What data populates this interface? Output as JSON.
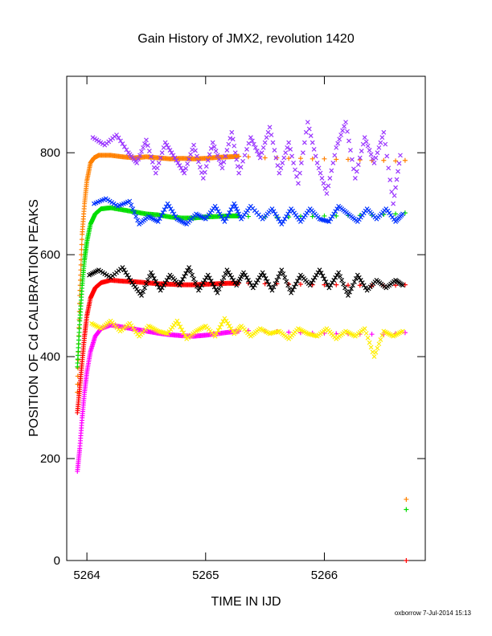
{
  "chart_data": {
    "type": "scatter",
    "title": "Gain History of JMX2, revolution 1420",
    "xlabel": "TIME IN IJD",
    "ylabel": "POSITION OF Cd CALIBRATION PEAKS",
    "xlim": [
      5263.83,
      5266.85
    ],
    "ylim": [
      0,
      950
    ],
    "x_ticks": [
      5264,
      5265,
      5266
    ],
    "y_ticks": [
      0,
      200,
      400,
      600,
      800
    ],
    "grid": false,
    "legend": "none",
    "footer": "oxborrow  7-Jul-2014 15:13",
    "series": [
      {
        "color": "#ff8000",
        "marker": "plus",
        "x": [
          5263.92,
          5263.94,
          5263.96,
          5263.98,
          5264.0,
          5264.03,
          5264.06,
          5264.1,
          5264.2,
          5264.3,
          5264.4,
          5264.5,
          5264.6,
          5264.7,
          5264.8,
          5264.9,
          5265.0,
          5265.1,
          5265.2,
          5265.28,
          5265.36,
          5265.5,
          5265.6,
          5265.7,
          5265.8,
          5265.9,
          5266.0,
          5266.1,
          5266.2,
          5266.3,
          5266.4,
          5266.5,
          5266.6,
          5266.68
        ],
        "y": [
          330,
          520,
          640,
          700,
          745,
          780,
          790,
          795,
          795,
          792,
          790,
          792,
          790,
          788,
          789,
          788,
          789,
          791,
          792,
          793,
          792,
          790,
          790,
          789,
          789,
          788,
          788,
          787,
          787,
          786,
          785,
          785,
          784,
          785
        ]
      },
      {
        "color": "#00dd00",
        "marker": "plus",
        "x": [
          5263.92,
          5263.94,
          5263.96,
          5263.98,
          5264.0,
          5264.03,
          5264.07,
          5264.12,
          5264.2,
          5264.3,
          5264.4,
          5264.5,
          5264.6,
          5264.7,
          5264.8,
          5264.9,
          5265.0,
          5265.1,
          5265.2,
          5265.28,
          5265.36,
          5265.5,
          5265.6,
          5265.7,
          5265.8,
          5265.9,
          5266.0,
          5266.1,
          5266.2,
          5266.3,
          5266.4,
          5266.5,
          5266.6,
          5266.68
        ],
        "y": [
          380,
          470,
          540,
          590,
          625,
          660,
          680,
          690,
          692,
          688,
          684,
          680,
          678,
          674,
          672,
          672,
          674,
          675,
          676,
          676,
          675,
          674,
          674,
          674,
          675,
          675,
          676,
          676,
          677,
          677,
          678,
          679,
          680,
          682
        ]
      },
      {
        "color": "#ff0000",
        "marker": "plus",
        "x": [
          5263.92,
          5263.94,
          5263.96,
          5263.98,
          5264.0,
          5264.03,
          5264.07,
          5264.12,
          5264.2,
          5264.3,
          5264.4,
          5264.5,
          5264.6,
          5264.7,
          5264.8,
          5264.9,
          5265.0,
          5265.1,
          5265.2,
          5265.28,
          5265.36,
          5265.5,
          5265.6,
          5265.7,
          5265.8,
          5265.9,
          5266.0,
          5266.1,
          5266.2,
          5266.3,
          5266.4,
          5266.5,
          5266.6,
          5266.68
        ],
        "y": [
          290,
          340,
          390,
          440,
          480,
          515,
          535,
          545,
          550,
          548,
          547,
          545,
          543,
          542,
          541,
          541,
          542,
          543,
          544,
          544,
          544,
          543,
          543,
          542,
          542,
          541,
          541,
          541,
          540,
          540,
          539,
          539,
          540,
          541
        ]
      },
      {
        "color": "#ff00ff",
        "marker": "plus",
        "x": [
          5263.92,
          5263.94,
          5263.96,
          5263.98,
          5264.0,
          5264.03,
          5264.07,
          5264.12,
          5264.2,
          5264.3,
          5264.4,
          5264.5,
          5264.6,
          5264.7,
          5264.8,
          5264.9,
          5265.0,
          5265.1,
          5265.2,
          5265.28,
          5265.36,
          5265.5,
          5265.6,
          5265.7,
          5265.8,
          5265.9,
          5266.0,
          5266.1,
          5266.2,
          5266.3,
          5266.4,
          5266.5,
          5266.6,
          5266.68
        ],
        "y": [
          175,
          220,
          280,
          330,
          370,
          410,
          440,
          455,
          462,
          458,
          454,
          450,
          446,
          443,
          441,
          440,
          442,
          445,
          448,
          450,
          451,
          450,
          449,
          448,
          447,
          446,
          446,
          445,
          445,
          444,
          444,
          444,
          445,
          447
        ]
      },
      {
        "color": "#9933ff",
        "marker": "x",
        "x": [
          5264.05,
          5264.15,
          5264.25,
          5264.35,
          5264.42,
          5264.5,
          5264.58,
          5264.66,
          5264.74,
          5264.82,
          5264.9,
          5264.98,
          5265.06,
          5265.14,
          5265.22,
          5265.28,
          5265.38,
          5265.46,
          5265.54,
          5265.62,
          5265.7,
          5265.78,
          5265.86,
          5265.94,
          5266.02,
          5266.1,
          5266.18,
          5266.26,
          5266.34,
          5266.42,
          5266.5,
          5266.58,
          5266.64
        ],
        "y": [
          830,
          815,
          835,
          800,
          780,
          825,
          760,
          820,
          790,
          760,
          815,
          750,
          820,
          770,
          840,
          760,
          830,
          790,
          850,
          760,
          820,
          740,
          860,
          780,
          720,
          810,
          860,
          750,
          830,
          780,
          840,
          700,
          795
        ]
      },
      {
        "color": "#0033ff",
        "marker": "x",
        "x": [
          5264.06,
          5264.16,
          5264.26,
          5264.36,
          5264.44,
          5264.52,
          5264.6,
          5264.68,
          5264.76,
          5264.84,
          5264.92,
          5265.0,
          5265.08,
          5265.16,
          5265.24,
          5265.3,
          5265.38,
          5265.48,
          5265.56,
          5265.64,
          5265.72,
          5265.8,
          5265.88,
          5265.96,
          5266.04,
          5266.12,
          5266.2,
          5266.28,
          5266.36,
          5266.44,
          5266.52,
          5266.6,
          5266.66
        ],
        "y": [
          700,
          710,
          695,
          705,
          660,
          675,
          665,
          700,
          670,
          660,
          680,
          670,
          695,
          665,
          700,
          670,
          695,
          670,
          690,
          660,
          690,
          665,
          690,
          670,
          665,
          695,
          680,
          665,
          690,
          670,
          690,
          665,
          680
        ]
      },
      {
        "color": "#000000",
        "marker": "x",
        "x": [
          5264.02,
          5264.1,
          5264.2,
          5264.3,
          5264.38,
          5264.46,
          5264.54,
          5264.62,
          5264.7,
          5264.78,
          5264.86,
          5264.94,
          5265.02,
          5265.1,
          5265.18,
          5265.26,
          5265.32,
          5265.4,
          5265.48,
          5265.56,
          5265.64,
          5265.72,
          5265.8,
          5265.88,
          5265.96,
          5266.04,
          5266.12,
          5266.2,
          5266.28,
          5266.36,
          5266.44,
          5266.52,
          5266.6,
          5266.66
        ],
        "y": [
          560,
          570,
          555,
          575,
          545,
          520,
          565,
          530,
          560,
          540,
          575,
          530,
          560,
          525,
          570,
          540,
          565,
          535,
          565,
          530,
          570,
          525,
          560,
          540,
          570,
          535,
          565,
          520,
          560,
          530,
          550,
          535,
          550,
          540
        ]
      },
      {
        "color": "#ffee00",
        "marker": "x",
        "x": [
          5264.04,
          5264.12,
          5264.2,
          5264.28,
          5264.36,
          5264.44,
          5264.52,
          5264.6,
          5264.68,
          5264.76,
          5264.84,
          5264.92,
          5265.0,
          5265.08,
          5265.16,
          5265.24,
          5265.3,
          5265.38,
          5265.46,
          5265.54,
          5265.62,
          5265.7,
          5265.78,
          5265.86,
          5265.94,
          5266.02,
          5266.1,
          5266.18,
          5266.26,
          5266.34,
          5266.42,
          5266.5,
          5266.58,
          5266.66
        ],
        "y": [
          465,
          455,
          470,
          450,
          465,
          440,
          460,
          450,
          445,
          470,
          435,
          450,
          460,
          440,
          475,
          445,
          460,
          440,
          455,
          445,
          450,
          435,
          455,
          445,
          440,
          455,
          435,
          450,
          440,
          455,
          400,
          450,
          440,
          450
        ]
      },
      {
        "color": "#ff8000",
        "marker": "plus",
        "x": [
          5266.69
        ],
        "y": [
          120
        ]
      },
      {
        "color": "#00dd00",
        "marker": "plus",
        "x": [
          5266.69
        ],
        "y": [
          100
        ]
      },
      {
        "color": "#ff0000",
        "marker": "plus",
        "x": [
          5266.69
        ],
        "y": [
          0
        ]
      }
    ]
  }
}
